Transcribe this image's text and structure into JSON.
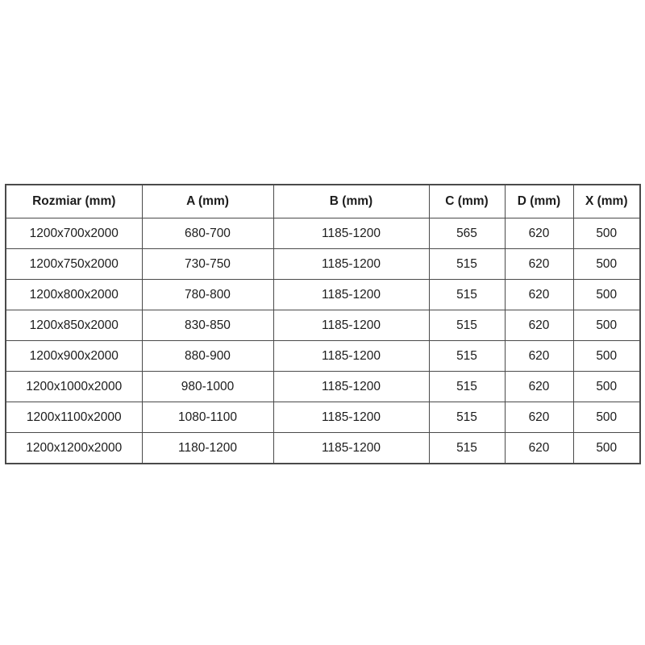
{
  "chart_data": {
    "type": "table",
    "title": "",
    "columns": [
      "Rozmiar (mm)",
      "A (mm)",
      "B (mm)",
      "C (mm)",
      "D (mm)",
      "X (mm)"
    ],
    "rows": [
      [
        "1200x700x2000",
        "680-700",
        "1185-1200",
        "565",
        "620",
        "500"
      ],
      [
        "1200x750x2000",
        "730-750",
        "1185-1200",
        "515",
        "620",
        "500"
      ],
      [
        "1200x800x2000",
        "780-800",
        "1185-1200",
        "515",
        "620",
        "500"
      ],
      [
        "1200x850x2000",
        "830-850",
        "1185-1200",
        "515",
        "620",
        "500"
      ],
      [
        "1200x900x2000",
        "880-900",
        "1185-1200",
        "515",
        "620",
        "500"
      ],
      [
        "1200x1000x2000",
        "980-1000",
        "1185-1200",
        "515",
        "620",
        "500"
      ],
      [
        "1200x1100x2000",
        "1080-1100",
        "1185-1200",
        "515",
        "620",
        "500"
      ],
      [
        "1200x1200x2000",
        "1180-1200",
        "1185-1200",
        "515",
        "620",
        "500"
      ]
    ],
    "layout": {
      "grid": "on",
      "header_style": "bold",
      "cell_alignment": "center"
    }
  },
  "colors": {
    "border": "#4a4a4a",
    "text": "#1c1c1c",
    "background": "#ffffff"
  }
}
